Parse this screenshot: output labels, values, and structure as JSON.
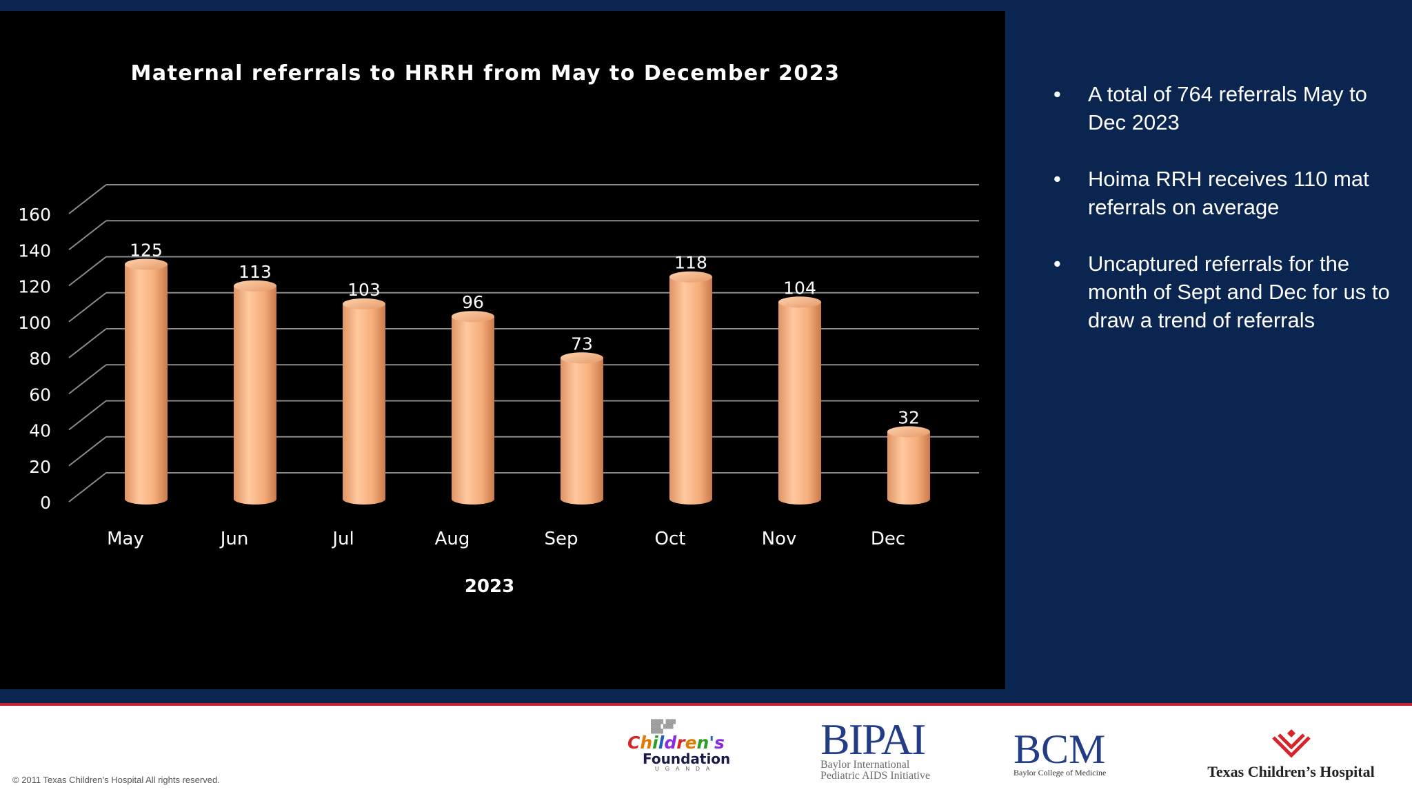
{
  "slide": {
    "bullets": [
      "A total of 764 referrals May to Dec 2023",
      "Hoima RRH receives 110 mat referrals on average",
      "Uncaptured referrals for the month of Sept and Dec for us to draw a trend of referrals"
    ],
    "bullet_symbol": "•",
    "copyright": "© 2011 Texas Children’s Hospital All rights reserved.",
    "logos": {
      "childrens_foundation": {
        "line1": "Children's",
        "line2": "Foundation",
        "line3": "UGANDA"
      },
      "bipai": {
        "name": "BIPAI",
        "sub1": "Baylor International",
        "sub2": "Pediatric AIDS Initiative"
      },
      "bcm": {
        "name": "BCM",
        "sub": "Baylor College of Medicine"
      },
      "tch": {
        "name": "Texas Children’s Hospital"
      }
    },
    "colors": {
      "navy": "#0b2551",
      "chart_bg": "#000000",
      "bar": "#f5ad7a",
      "accent_red": "#c8202f"
    }
  },
  "chart_data": {
    "type": "bar",
    "title": "Maternal referrals to HRRH from May to December 2023",
    "xlabel": "2023",
    "ylabel": "",
    "categories": [
      "May",
      "Jun",
      "Jul",
      "Aug",
      "Sep",
      "Oct",
      "Nov",
      "Dec"
    ],
    "values": [
      125,
      113,
      103,
      96,
      73,
      118,
      104,
      32
    ],
    "ylim": [
      0,
      160
    ],
    "yticks": [
      "0",
      "20",
      "40",
      "60",
      "80",
      "100",
      "120",
      "140",
      "160"
    ],
    "grid": true,
    "legend": "none",
    "style": "3d-cylinder"
  }
}
